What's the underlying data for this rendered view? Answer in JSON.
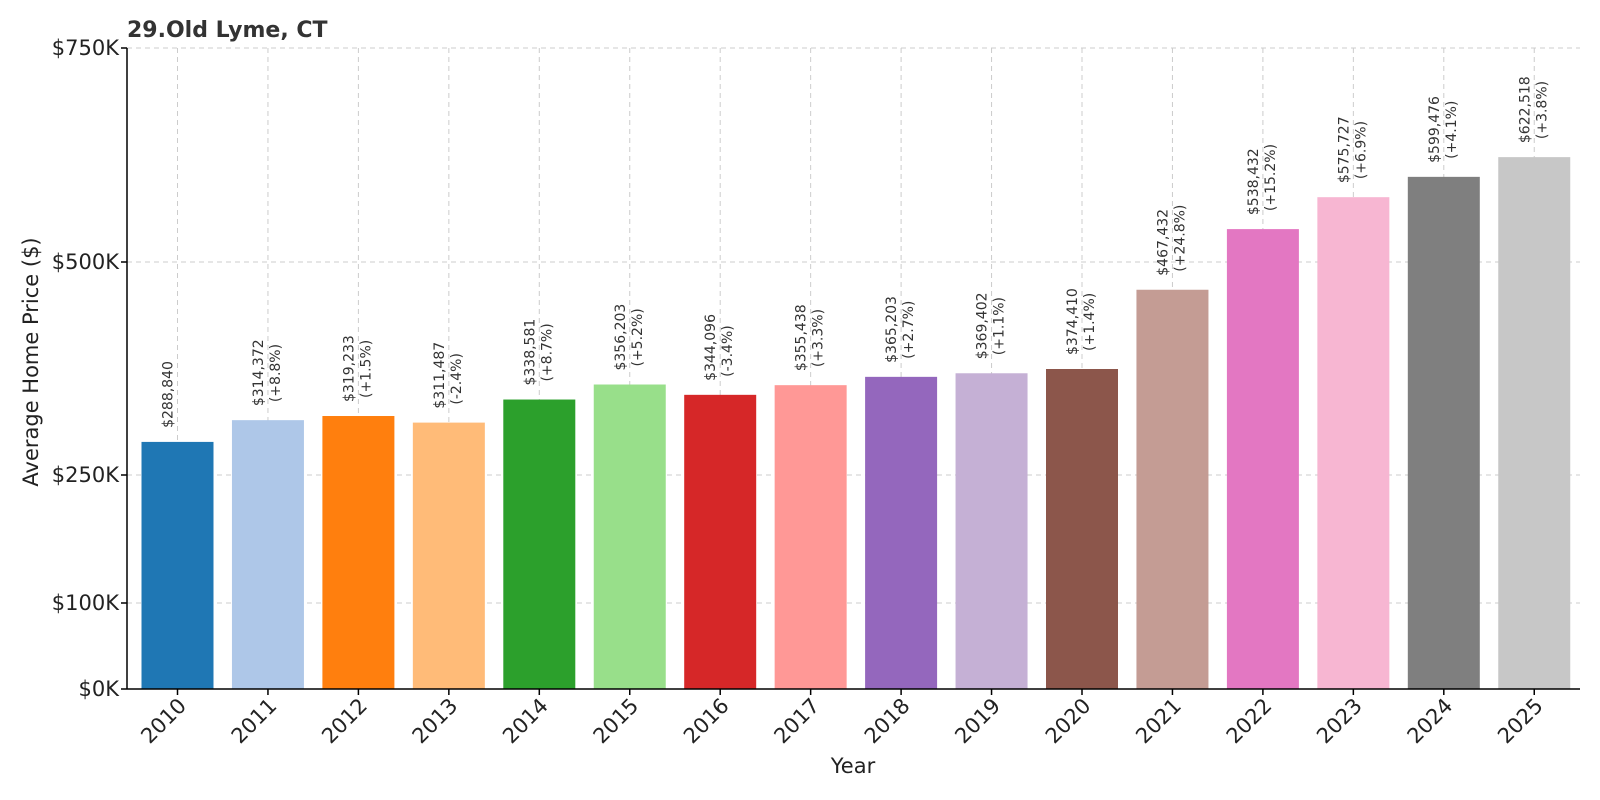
{
  "chart_data": {
    "type": "bar",
    "title": "29.Old Lyme, CT",
    "xlabel": "Year",
    "ylabel": "Average Home Price ($)",
    "categories": [
      "2010",
      "2011",
      "2012",
      "2013",
      "2014",
      "2015",
      "2016",
      "2017",
      "2018",
      "2019",
      "2020",
      "2021",
      "2022",
      "2023",
      "2024",
      "2025"
    ],
    "values": [
      288840,
      314372,
      319233,
      311487,
      338581,
      356203,
      344096,
      355438,
      365203,
      369402,
      374410,
      467432,
      538432,
      575727,
      599476,
      622518
    ],
    "value_labels": [
      "$288,840",
      "$314,372",
      "$319,233",
      "$311,487",
      "$338,581",
      "$356,203",
      "$344,096",
      "$355,438",
      "$365,203",
      "$369,402",
      "$374,410",
      "$467,432",
      "$538,432",
      "$575,727",
      "$599,476",
      "$622,518"
    ],
    "change_labels": [
      "",
      "(+8.8%)",
      "(+1.5%)",
      "(-2.4%)",
      "(+8.7%)",
      "(+5.2%)",
      "(-3.4%)",
      "(+3.3%)",
      "(+2.7%)",
      "(+1.1%)",
      "(+1.4%)",
      "(+24.8%)",
      "(+15.2%)",
      "(+6.9%)",
      "(+4.1%)",
      "(+3.8%)"
    ],
    "colors": [
      "#1f77b4",
      "#aec7e8",
      "#ff7f0e",
      "#ffbb78",
      "#2ca02c",
      "#98df8a",
      "#d62728",
      "#ff9896",
      "#9467bd",
      "#c5b0d5",
      "#8c564b",
      "#c49c94",
      "#e377c2",
      "#f7b6d2",
      "#7f7f7f",
      "#c7c7c7"
    ],
    "yticks": [
      0,
      100000,
      250000,
      500000,
      750000
    ],
    "ytick_labels": [
      "$0K",
      "$100K",
      "$250K",
      "$500K",
      "$750K"
    ],
    "ylim": [
      0,
      750000
    ],
    "grid": true
  }
}
